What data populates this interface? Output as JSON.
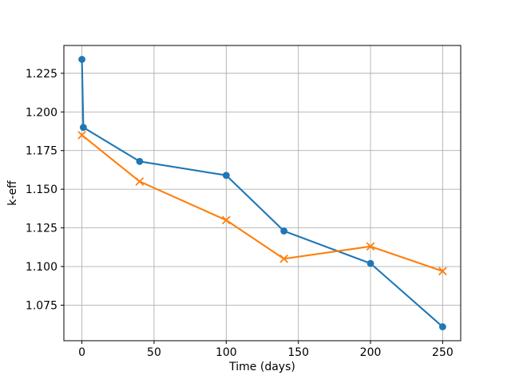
{
  "chart_data": {
    "type": "line",
    "title": "",
    "xlabel": "Time (days)",
    "ylabel": "k-eff",
    "xlim": [
      -12.5,
      262.5
    ],
    "ylim": [
      1.052,
      1.243
    ],
    "grid": true,
    "grid_color": "#b0b0b0",
    "spine_color": "#000000",
    "background_color": "#ffffff",
    "legend": "none",
    "x_ticks": [
      0,
      50,
      100,
      150,
      200,
      250
    ],
    "x_tick_labels": [
      "0",
      "50",
      "100",
      "150",
      "200",
      "250"
    ],
    "y_ticks": [
      1.075,
      1.1,
      1.125,
      1.15,
      1.175,
      1.2,
      1.225
    ],
    "y_tick_labels": [
      "1.075",
      "1.100",
      "1.125",
      "1.150",
      "1.175",
      "1.200",
      "1.225"
    ],
    "series": [
      {
        "name": "series-1-blue-circles",
        "color": "#1f77b4",
        "marker": "circle",
        "x": [
          0,
          1,
          40,
          100,
          140,
          200,
          250
        ],
        "y": [
          1.234,
          1.19,
          1.168,
          1.159,
          1.123,
          1.102,
          1.061
        ]
      },
      {
        "name": "series-2-orange-x",
        "color": "#ff7f0e",
        "marker": "x",
        "x": [
          0,
          40,
          100,
          140,
          200,
          250
        ],
        "y": [
          1.185,
          1.155,
          1.13,
          1.105,
          1.113,
          1.097
        ]
      }
    ]
  }
}
